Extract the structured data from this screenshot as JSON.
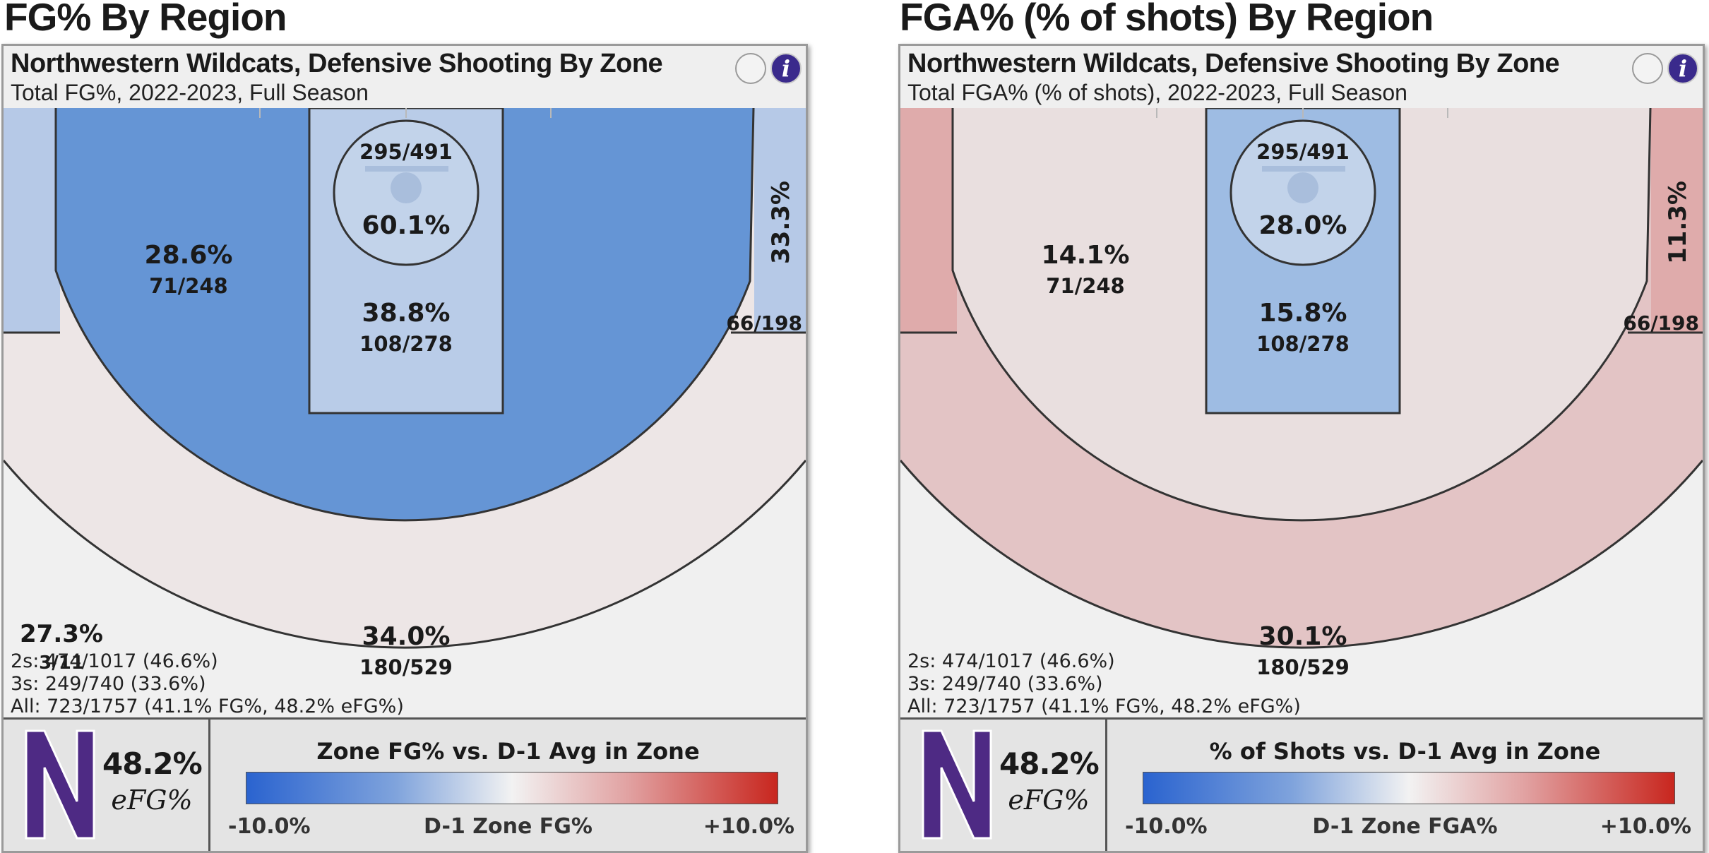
{
  "chart_data": [
    {
      "type": "heatmap",
      "heading": "FG% By Region",
      "title": "Northwestern Wildcats, Defensive Shooting By Zone",
      "subtitle": "Total FG%, 2022-2023, Full Season",
      "zones": {
        "rim": {
          "value": "60.1%",
          "made_att": "295/491",
          "color": "#c2d3ea"
        },
        "paint": {
          "value": "38.8%",
          "made_att": "108/278",
          "color": "#b9cce8"
        },
        "mid": {
          "value": "28.6%",
          "made_att": "71/248",
          "color": "#6595d5"
        },
        "corner_right": {
          "value": "33.3%",
          "made_att": "66/198",
          "color": "#b6c9e7"
        },
        "corner_left": {
          "value": "",
          "made_att": "",
          "color": "#b6c9e7"
        },
        "three_top": {
          "value": "34.0%",
          "made_att": "180/529",
          "color": "#ede6e6"
        },
        "long": {
          "value": "27.3%",
          "made_att": "3/11",
          "color": "#f0f0f0"
        }
      },
      "stats": [
        "2s: 474/1017 (46.6%)",
        "3s: 249/740 (33.6%)",
        "All: 723/1757 (41.1% FG%, 48.2% eFG%)"
      ],
      "efg_value": "48.2%",
      "efg_label": "eFG%",
      "scale": {
        "title": "Zone FG% vs. D-1 Avg in Zone",
        "low": "-10.0%",
        "mid": "D-1 Zone FG%",
        "high": "+10.0%"
      }
    },
    {
      "type": "heatmap",
      "heading": "FGA% (% of shots) By Region",
      "title": "Northwestern Wildcats, Defensive Shooting By Zone",
      "subtitle": "Total FGA% (% of shots), 2022-2023, Full Season",
      "zones": {
        "rim": {
          "value": "28.0%",
          "made_att": "295/491",
          "color": "#c2d3ea"
        },
        "paint": {
          "value": "15.8%",
          "made_att": "108/278",
          "color": "#9ebce3"
        },
        "mid": {
          "value": "14.1%",
          "made_att": "71/248",
          "color": "#e9dfdf"
        },
        "corner_right": {
          "value": "11.3%",
          "made_att": "66/198",
          "color": "#dfabab"
        },
        "corner_left": {
          "value": "",
          "made_att": "",
          "color": "#dfabab"
        },
        "three_top": {
          "value": "30.1%",
          "made_att": "180/529",
          "color": "#e3c4c5"
        },
        "long": {
          "value": "",
          "made_att": "",
          "color": "#f0f0f0"
        }
      },
      "stats": [
        "2s: 474/1017 (46.6%)",
        "3s: 249/740 (33.6%)",
        "All: 723/1757 (41.1% FG%, 48.2% eFG%)"
      ],
      "efg_value": "48.2%",
      "efg_label": "eFG%",
      "scale": {
        "title": "% of Shots vs. D-1 Avg in Zone",
        "low": "-10.0%",
        "mid": "D-1 Zone FGA%",
        "high": "+10.0%"
      }
    }
  ],
  "colors": {
    "logo_purple": "#4e2a84",
    "info_button": "#3a2a8c"
  },
  "icons": {
    "info": "info-icon",
    "blank_button": "circle-button-icon",
    "logo": "northwestern-n-logo"
  }
}
